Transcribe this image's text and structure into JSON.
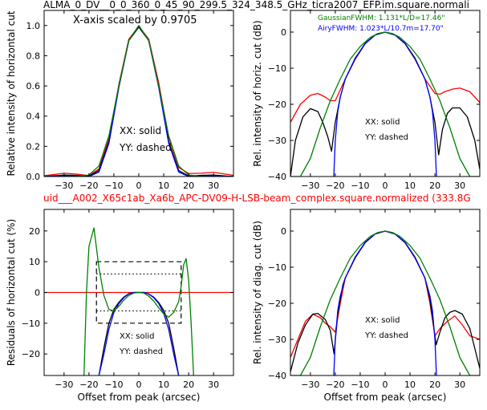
{
  "figure": {
    "top_title": "ALMA_0_DV__0_0_360_0_45_90_299.5_324_348.5_GHz_ticra2007_EFP.im.square.normali",
    "mid_title": "uid___A002_X65c1ab_Xa6b_APC-DV09-H-LSB-beam_complex.square.normalized (333.8G",
    "mid_title_color": "#ff0000",
    "subtitle": "X-axis scaled by 0.9705",
    "gaussian_label": "GaussianFWHM: 1.131*L/D=17.46\"",
    "airy_label": "AiryFWHM: 1.023*L/10.7m=17.70\"",
    "gaussian_color": "#008000",
    "airy_color": "#0000ff"
  },
  "chart_data": [
    {
      "id": "top-left",
      "type": "line",
      "title": "",
      "xlabel": "",
      "ylabel": "Relative intensity of horizontal cut",
      "xlim": [
        -38,
        38
      ],
      "ylim": [
        0,
        1.1
      ],
      "xticks": [
        -30,
        -20,
        -10,
        0,
        10,
        20,
        30
      ],
      "yticks": [
        0.0,
        0.2,
        0.4,
        0.6,
        0.8,
        1.0
      ],
      "ytick_labels": [
        "0.0",
        "0.2",
        "0.4",
        "0.6",
        "0.8",
        "1.0"
      ],
      "legend": [
        "XX: solid",
        "YY: dashed"
      ],
      "grid": false,
      "series": [
        {
          "color": "#ff0000",
          "x": [
            -38,
            -30,
            -25,
            -20,
            -16,
            -12,
            -8,
            -4,
            0,
            4,
            8,
            12,
            16,
            20,
            25,
            30,
            38
          ],
          "y": [
            0.005,
            0.022,
            0.016,
            0.006,
            0.05,
            0.25,
            0.61,
            0.91,
            0.995,
            0.91,
            0.62,
            0.26,
            0.06,
            0.02,
            0.022,
            0.028,
            0.008
          ]
        },
        {
          "color": "#000000",
          "x": [
            -38,
            -30,
            -25,
            -20,
            -16,
            -12,
            -8,
            -4,
            0,
            4,
            8,
            12,
            16,
            20,
            25,
            30,
            38
          ],
          "y": [
            0.0,
            0.01,
            0.008,
            0.002,
            0.04,
            0.23,
            0.6,
            0.9,
            0.99,
            0.9,
            0.6,
            0.23,
            0.04,
            0.003,
            0.008,
            0.01,
            0.0
          ]
        },
        {
          "color": "#0000ff",
          "x": [
            -38,
            -30,
            -25,
            -20,
            -16,
            -12,
            -8,
            -4,
            0,
            4,
            8,
            12,
            16,
            20,
            25,
            30,
            38
          ],
          "y": [
            0.0,
            0.004,
            0.003,
            0.0,
            0.03,
            0.22,
            0.59,
            0.9,
            1.0,
            0.9,
            0.59,
            0.22,
            0.03,
            0.0,
            0.003,
            0.004,
            0.0
          ]
        },
        {
          "color": "#008000",
          "x": [
            -38,
            -30,
            -25,
            -20,
            -16,
            -12,
            -8,
            -4,
            0,
            4,
            8,
            12,
            16,
            20,
            25,
            30,
            38
          ],
          "y": [
            0.0,
            0.0,
            0.001,
            0.01,
            0.07,
            0.27,
            0.6,
            0.9,
            1.0,
            0.9,
            0.6,
            0.27,
            0.07,
            0.01,
            0.001,
            0.0,
            0.0
          ]
        }
      ]
    },
    {
      "id": "top-right",
      "type": "line",
      "title": "",
      "xlabel": "",
      "ylabel": "Rel. intensity of horiz. cut (dB)",
      "xlim": [
        -38,
        38
      ],
      "ylim": [
        -40,
        6
      ],
      "xticks": [
        -30,
        -20,
        -10,
        0,
        10,
        20,
        30
      ],
      "yticks": [
        -40,
        -30,
        -20,
        -10,
        0
      ],
      "ytick_labels": [
        "−40",
        "−30",
        "−20",
        "−10",
        "0"
      ],
      "legend": [
        "XX: solid",
        "YY: dashed"
      ],
      "grid": false,
      "series": [
        {
          "color": "#ff0000",
          "x": [
            -38,
            -34,
            -30,
            -27,
            -24,
            -22,
            -20,
            -16,
            -12,
            -8,
            -4,
            0,
            4,
            8,
            12,
            16,
            20,
            22,
            24,
            27,
            30,
            34,
            38
          ],
          "y": [
            -25,
            -20,
            -17.5,
            -17,
            -18,
            -19,
            -19,
            -13,
            -7.5,
            -3.2,
            -0.8,
            0,
            -0.8,
            -3.2,
            -7.5,
            -13,
            -17,
            -17.2,
            -16.5,
            -15.8,
            -15.5,
            -16.5,
            -19.5
          ]
        },
        {
          "color": "#000000",
          "x": [
            -38,
            -36,
            -33,
            -30,
            -27,
            -25,
            -23,
            -21.5,
            -20,
            -18,
            -16,
            -12,
            -8,
            -4,
            0,
            4,
            8,
            12,
            16,
            18,
            20,
            21.5,
            23,
            25,
            27,
            30,
            33,
            36,
            38
          ],
          "y": [
            -40,
            -30,
            -23.5,
            -21.2,
            -22,
            -25,
            -29,
            -33,
            -25,
            -18,
            -13,
            -7.4,
            -3.2,
            -0.8,
            0,
            -0.8,
            -3.2,
            -7.4,
            -13,
            -18,
            -25,
            -34,
            -27,
            -22.5,
            -21,
            -21,
            -23.5,
            -30,
            -38
          ]
        },
        {
          "color": "#0000ff",
          "x": [
            -20.6,
            -20.3,
            -20,
            -19,
            -18,
            -16,
            -12,
            -8,
            -4,
            0,
            4,
            8,
            12,
            16,
            18,
            19,
            20,
            20.3,
            20.6
          ],
          "y": [
            -40,
            -35,
            -30,
            -22,
            -18,
            -13,
            -7.2,
            -3.1,
            -0.8,
            0,
            -0.8,
            -3.1,
            -7.2,
            -13,
            -18,
            -22,
            -30,
            -35,
            -40
          ]
        },
        {
          "color": "#008000",
          "x": [
            -38,
            -34,
            -30,
            -26,
            -22,
            -18,
            -14,
            -10,
            -6,
            -3,
            0,
            3,
            6,
            10,
            14,
            18,
            22,
            26,
            30,
            34,
            38
          ],
          "y": [
            -40,
            -40,
            -35,
            -26.5,
            -19,
            -13,
            -7.5,
            -4,
            -1.5,
            -0.4,
            0,
            -0.4,
            -1.5,
            -4,
            -7.5,
            -13,
            -19,
            -26.5,
            -35,
            -40,
            -40
          ]
        }
      ]
    },
    {
      "id": "bottom-left",
      "type": "line",
      "title": "",
      "xlabel": "Offset from peak (arcsec)",
      "ylabel": "Residuals of horizontal cut (%)",
      "xlim": [
        -38,
        38
      ],
      "ylim": [
        -27,
        27
      ],
      "xticks": [
        -30,
        -20,
        -10,
        0,
        10,
        20,
        30
      ],
      "yticks": [
        -20,
        -10,
        0,
        10,
        20
      ],
      "ytick_labels": [
        "−20",
        "−10",
        "0",
        "10",
        "20"
      ],
      "legend": [
        "XX: solid",
        "YY: dashed"
      ],
      "grid": false,
      "dashed_box": {
        "x": [
          -17,
          17
        ],
        "y": [
          -10,
          10
        ]
      },
      "dotted_box": {
        "x": [
          -17,
          17
        ],
        "y": [
          -6,
          6
        ]
      },
      "series": [
        {
          "color": "#ff0000",
          "x": [
            -38,
            38
          ],
          "y": [
            0,
            0
          ]
        },
        {
          "color": "#000000",
          "x": [
            -16,
            -14,
            -12,
            -10,
            -8,
            -6,
            -4,
            -2,
            0,
            2,
            4,
            6,
            8,
            10,
            12,
            14,
            16
          ],
          "y": [
            -27,
            -18,
            -10,
            -5.5,
            -3.2,
            -1.5,
            -0.4,
            0,
            0,
            0,
            -0.5,
            -1.5,
            -3.3,
            -5.8,
            -10,
            -18,
            -27
          ]
        },
        {
          "color": "#0000ff",
          "x": [
            -16,
            -14,
            -12,
            -10,
            -8,
            -6,
            -4,
            -2,
            0,
            2,
            4,
            6,
            8,
            10,
            12,
            14,
            16
          ],
          "y": [
            -27,
            -20,
            -12,
            -6.5,
            -3.6,
            -1.7,
            -0.5,
            0,
            0,
            0,
            -0.5,
            -1.7,
            -3.6,
            -6.8,
            -12,
            -20,
            -27
          ]
        },
        {
          "color": "#008000",
          "x": [
            -22,
            -21,
            -20,
            -18,
            -16,
            -14,
            -12,
            -10,
            -8,
            -6,
            -4,
            -2,
            0,
            2,
            4,
            6,
            8,
            10,
            12,
            14,
            16,
            17,
            18,
            19,
            20,
            21,
            22
          ],
          "y": [
            -27,
            0,
            15,
            21,
            8,
            -1,
            -5.5,
            -6,
            -4.5,
            -2.5,
            -1,
            -0.2,
            0,
            -0.2,
            -1.2,
            -2.8,
            -5,
            -7,
            -8,
            -6.5,
            -3,
            2,
            9,
            11,
            4,
            -10,
            -27
          ]
        }
      ]
    },
    {
      "id": "bottom-right",
      "type": "line",
      "title": "",
      "xlabel": "Offset from peak (arcsec)",
      "ylabel": "Rel. intensity of diag. cut (dB)",
      "xlim": [
        -38,
        38
      ],
      "ylim": [
        -40,
        6
      ],
      "xticks": [
        -30,
        -20,
        -10,
        0,
        10,
        20,
        30
      ],
      "yticks": [
        -40,
        -30,
        -20,
        -10,
        0
      ],
      "ytick_labels": [
        "−40",
        "−30",
        "−20",
        "−10",
        "0"
      ],
      "legend": [
        "XX: solid",
        "YY: dashed"
      ],
      "grid": false,
      "series": [
        {
          "color": "#ff0000",
          "x": [
            -38,
            -35,
            -32,
            -29,
            -26,
            -24,
            -22,
            -20,
            -18,
            -16,
            -12,
            -8,
            -4,
            0,
            4,
            8,
            12,
            16,
            18,
            20,
            22,
            25,
            28,
            31,
            34,
            38
          ],
          "y": [
            -35,
            -30,
            -25,
            -23,
            -24,
            -25.5,
            -26.5,
            -28,
            -20,
            -13,
            -7.4,
            -3.2,
            -0.8,
            0,
            -0.8,
            -3.2,
            -7.4,
            -13,
            -20,
            -29,
            -27,
            -25,
            -23.5,
            -26,
            -29,
            -30
          ]
        },
        {
          "color": "#000000",
          "x": [
            -38,
            -35,
            -32,
            -29,
            -27,
            -24,
            -22,
            -20.5,
            -19,
            -17,
            -16,
            -12,
            -8,
            -4,
            0,
            4,
            8,
            12,
            16,
            18,
            20.5,
            22,
            24,
            26,
            28,
            31,
            34,
            38
          ],
          "y": [
            -39,
            -31,
            -26,
            -23,
            -22.8,
            -24.5,
            -27.5,
            -34,
            -23,
            -15,
            -13,
            -7.4,
            -3.2,
            -0.8,
            0,
            -0.8,
            -3.2,
            -7.4,
            -13,
            -19,
            -31.5,
            -28,
            -24,
            -22.5,
            -22,
            -23,
            -27,
            -38
          ]
        },
        {
          "color": "#0000ff",
          "x": [
            -20.6,
            -20.3,
            -20,
            -19,
            -18,
            -16,
            -12,
            -8,
            -4,
            0,
            4,
            8,
            12,
            16,
            18,
            19,
            20,
            20.3,
            20.6
          ],
          "y": [
            -40,
            -35,
            -30,
            -22,
            -18,
            -13,
            -7.2,
            -3.1,
            -0.8,
            0,
            -0.8,
            -3.1,
            -7.2,
            -13,
            -18,
            -22,
            -30,
            -35,
            -40
          ]
        },
        {
          "color": "#008000",
          "x": [
            -38,
            -34,
            -30,
            -26,
            -22,
            -18,
            -14,
            -10,
            -6,
            -3,
            0,
            3,
            6,
            10,
            14,
            18,
            22,
            26,
            30,
            34,
            38
          ],
          "y": [
            -40,
            -40,
            -35,
            -26.5,
            -19,
            -13,
            -7.5,
            -4,
            -1.5,
            -0.4,
            0,
            -0.4,
            -1.5,
            -4,
            -7.5,
            -13,
            -19,
            -26.5,
            -35,
            -40,
            -40
          ]
        }
      ]
    }
  ]
}
